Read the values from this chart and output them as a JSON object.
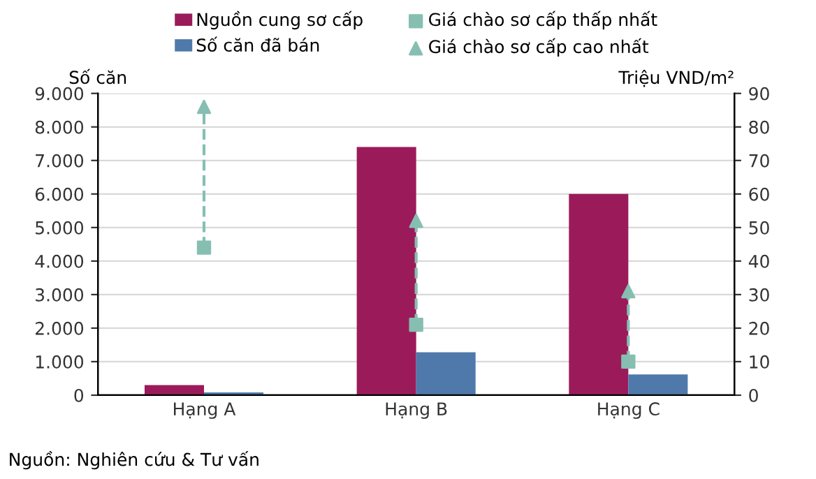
{
  "chart_data": {
    "type": "bar",
    "categories": [
      "Hạng A",
      "Hạng B",
      "Hạng C"
    ],
    "series": [
      {
        "name": "Nguồn cung sơ cấp",
        "color": "#9b1b5a",
        "values": [
          300,
          7400,
          6000
        ]
      },
      {
        "name": "Số căn đã bán",
        "color": "#4f79ab",
        "values": [
          80,
          1280,
          620
        ]
      },
      {
        "name": "Giá chào sơ cấp thấp nhất",
        "type": "scatter",
        "marker": "square",
        "axis": "y2",
        "color": "#86bfb2",
        "values": [
          44,
          21,
          10
        ]
      },
      {
        "name": "Giá chào sơ cấp cao nhất",
        "type": "scatter",
        "marker": "triangle",
        "axis": "y2",
        "color": "#86bfb2",
        "values": [
          86,
          52,
          31
        ]
      }
    ],
    "ylabel": "Số căn",
    "y2label": "Triệu VND/m²",
    "ylim": [
      0,
      9000
    ],
    "yticks": [
      0,
      {
        "value": 1000,
        "label": "1.000"
      },
      {
        "value": 2000,
        "label": "2.000"
      },
      {
        "value": 3000,
        "label": "3.000"
      },
      {
        "value": 4000,
        "label": "4.000"
      },
      {
        "value": 5000,
        "label": "5.000"
      },
      {
        "value": 6000,
        "label": "6.000"
      },
      {
        "value": 7000,
        "label": "7.000"
      },
      {
        "value": 8000,
        "label": "8.000"
      },
      {
        "value": 9000,
        "label": "9.000"
      }
    ],
    "y2lim": [
      0,
      90
    ],
    "y2ticks": [
      0,
      10,
      20,
      30,
      40,
      50,
      60,
      70,
      80,
      90
    ],
    "grid": "y",
    "legend": "top",
    "annotations": [
      "Nguồn: Nghiên cứu & Tư vấn"
    ]
  }
}
